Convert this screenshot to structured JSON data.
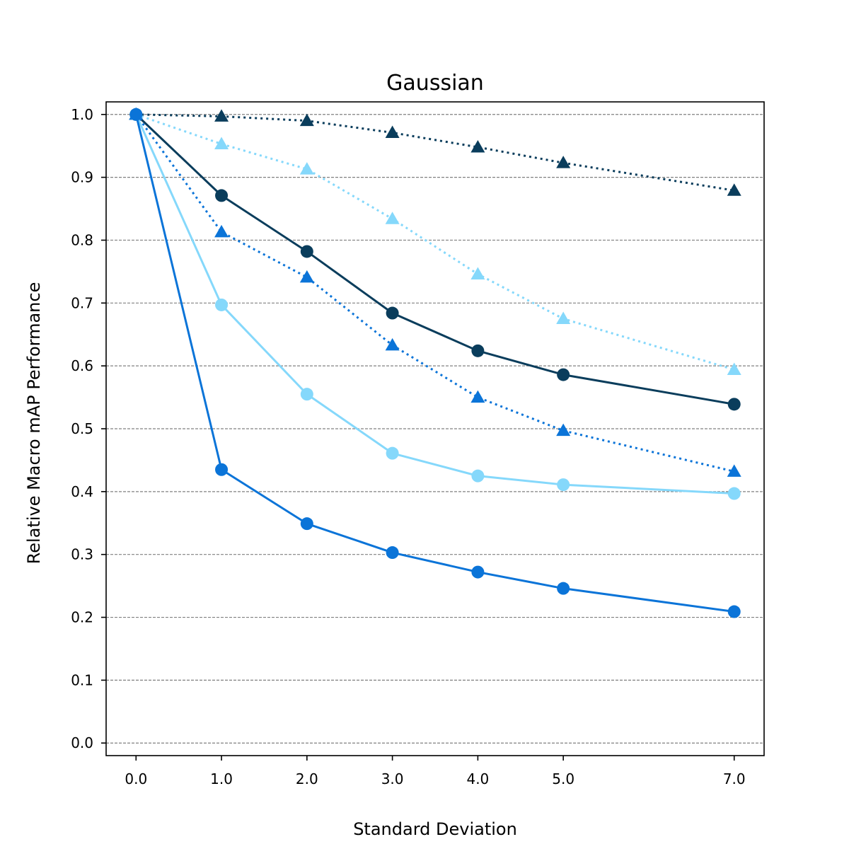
{
  "chart_data": {
    "type": "line",
    "title": "Gaussian",
    "xlabel": "Standard Deviation",
    "ylabel": "Relative Macro mAP Performance",
    "x": [
      0,
      1,
      2,
      3,
      4,
      5,
      7
    ],
    "xtick_labels": [
      "0.0",
      "1.0",
      "2.0",
      "3.0",
      "4.0",
      "5.0",
      "7.0"
    ],
    "yticks": [
      0.0,
      0.1,
      0.2,
      0.3,
      0.4,
      0.5,
      0.6,
      0.7,
      0.8,
      0.9,
      1.0
    ],
    "ytick_labels": [
      "0.0",
      "0.1",
      "0.2",
      "0.3",
      "0.4",
      "0.5",
      "0.6",
      "0.7",
      "0.8",
      "0.9",
      "1.0"
    ],
    "xlim": [
      -0.35,
      7.35
    ],
    "ylim": [
      -0.02,
      1.02
    ],
    "grid": {
      "y": true,
      "style": "dashed",
      "color": "#808080"
    },
    "series": [
      {
        "color": "#0a3d5c",
        "style": "dotted",
        "marker": "triangle",
        "values": [
          1.0,
          0.997,
          0.99,
          0.971,
          0.948,
          0.923,
          0.879
        ]
      },
      {
        "color": "#85d8fb",
        "style": "dotted",
        "marker": "triangle",
        "values": [
          1.0,
          0.953,
          0.913,
          0.834,
          0.746,
          0.675,
          0.594
        ]
      },
      {
        "color": "#0a3d5c",
        "style": "solid",
        "marker": "circle",
        "values": [
          1.0,
          0.871,
          0.782,
          0.684,
          0.624,
          0.586,
          0.539
        ]
      },
      {
        "color": "#0b74d8",
        "style": "dotted",
        "marker": "triangle",
        "values": [
          1.0,
          0.813,
          0.741,
          0.633,
          0.55,
          0.497,
          0.432
        ]
      },
      {
        "color": "#85d8fb",
        "style": "solid",
        "marker": "circle",
        "values": [
          1.0,
          0.697,
          0.555,
          0.461,
          0.425,
          0.411,
          0.397
        ]
      },
      {
        "color": "#0b74d8",
        "style": "solid",
        "marker": "circle",
        "values": [
          1.0,
          0.435,
          0.349,
          0.303,
          0.272,
          0.246,
          0.209
        ]
      }
    ]
  }
}
